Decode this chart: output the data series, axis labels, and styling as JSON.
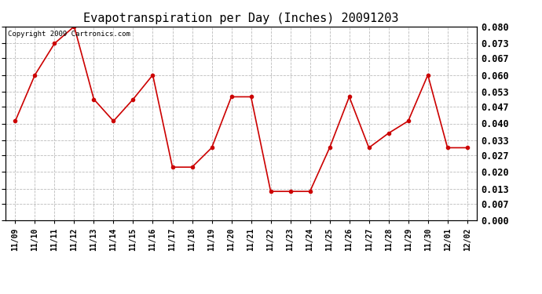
{
  "title": "Evapotranspiration per Day (Inches) 20091203",
  "copyright_text": "Copyright 2009 Cartronics.com",
  "x_labels": [
    "11/09",
    "11/10",
    "11/11",
    "11/12",
    "11/13",
    "11/14",
    "11/15",
    "11/16",
    "11/17",
    "11/18",
    "11/19",
    "11/20",
    "11/21",
    "11/22",
    "11/23",
    "11/24",
    "11/25",
    "11/26",
    "11/27",
    "11/28",
    "11/29",
    "11/30",
    "12/01",
    "12/02"
  ],
  "y_values": [
    0.041,
    0.06,
    0.073,
    0.08,
    0.05,
    0.041,
    0.05,
    0.06,
    0.022,
    0.022,
    0.03,
    0.051,
    0.051,
    0.012,
    0.012,
    0.012,
    0.03,
    0.051,
    0.03,
    0.036,
    0.041,
    0.06,
    0.03,
    0.03
  ],
  "y_ticks": [
    0.0,
    0.007,
    0.013,
    0.02,
    0.027,
    0.033,
    0.04,
    0.047,
    0.053,
    0.06,
    0.067,
    0.073,
    0.08
  ],
  "line_color": "#cc0000",
  "marker": "o",
  "marker_size": 3,
  "marker_color": "#cc0000",
  "background_color": "#ffffff",
  "grid_color": "#bbbbbb",
  "ylim": [
    0.0,
    0.08
  ],
  "title_fontsize": 11,
  "copyright_fontsize": 6.5,
  "tick_fontsize": 8.5,
  "x_tick_fontsize": 7
}
